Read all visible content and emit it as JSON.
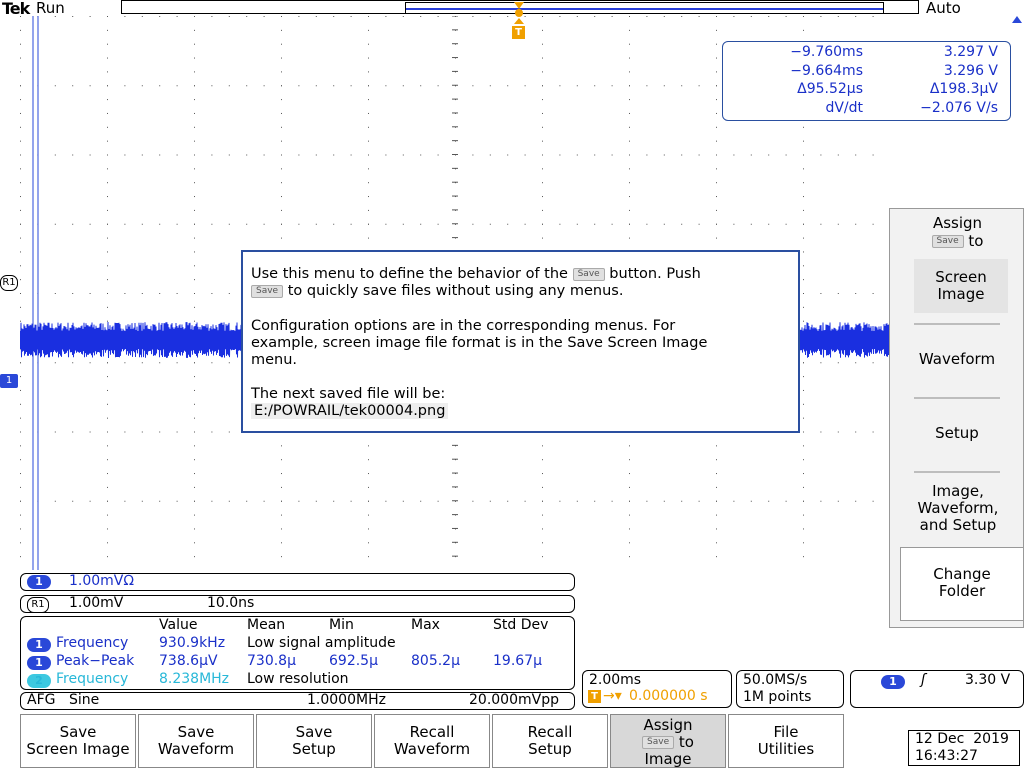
{
  "top_bar": {
    "brand": "Tek",
    "state": "Run",
    "trigger_mode": "Auto"
  },
  "trigger_marker": "T",
  "cursor_readout": {
    "rows": [
      {
        "time": "−9.760ms",
        "value": "3.297 V"
      },
      {
        "time": "−9.664ms",
        "value": "3.296 V"
      },
      {
        "time": "Δ95.52µs",
        "value": "Δ198.3µV"
      },
      {
        "time": "dV/dt",
        "value": "−2.076 V/s"
      }
    ]
  },
  "side_menu": {
    "title_top": "Assign",
    "title_chip": "Save",
    "title_suffix": "to",
    "items": [
      "Screen Image",
      "Waveform",
      "Setup",
      "Image, Waveform, and Setup",
      "Change Folder"
    ]
  },
  "dialog": {
    "p1_a": "Use this menu to define the behavior of the",
    "p1_chip": "Save",
    "p1_b": "button. Push",
    "p1_chip2": "Save",
    "p1_c": "to quickly save files without using any menus.",
    "p2_l1": "Configuration options are in the corresponding menus. For",
    "p2_l2": "example, screen image file format is in the Save Screen Image",
    "p2_l3": "menu.",
    "p3_l1": "The next saved file will be:",
    "p3_path": "E:/POWRAIL/tek00004.png"
  },
  "channel_markers": {
    "ref": "R1",
    "ch1": "1"
  },
  "ch1_bar": {
    "badge": "1",
    "scale": "1.00mVΩ"
  },
  "ref1_bar": {
    "badge": "R1",
    "scale": "1.00mV",
    "timebase": "10.0ns"
  },
  "measurements": {
    "headers": [
      "Value",
      "Mean",
      "Min",
      "Max",
      "Std Dev"
    ],
    "rows": [
      {
        "badge": "1",
        "name": "Frequency",
        "value": "930.9kHz",
        "note": "Low signal amplitude",
        "mean": "",
        "min": "",
        "max": "",
        "std": ""
      },
      {
        "badge": "1",
        "name": "Peak−Peak",
        "value": "738.6µV",
        "note": "",
        "mean": "730.8µ",
        "min": "692.5µ",
        "max": "805.2µ",
        "std": "19.67µ"
      },
      {
        "badge": "2",
        "name": "Frequency",
        "value": "8.238MHz",
        "note": "Low resolution",
        "mean": "",
        "min": "",
        "max": "",
        "std": ""
      }
    ]
  },
  "afg_bar": {
    "label": "AFG",
    "wave": "Sine",
    "freq": "1.0000MHz",
    "ampl": "20.000mVpp"
  },
  "horizontal": {
    "scale": "2.00ms",
    "delay": "0.000000 s"
  },
  "acquisition": {
    "rate": "50.0MS/s",
    "points": "1M points"
  },
  "trigger": {
    "badge": "1",
    "slope": "ʃ",
    "level": "3.30 V"
  },
  "bottom_buttons": [
    {
      "label1": "Save",
      "label2": "Screen Image"
    },
    {
      "label1": "Save",
      "label2": "Waveform"
    },
    {
      "label1": "Save",
      "label2": "Setup"
    },
    {
      "label1": "Recall",
      "label2": "Waveform"
    },
    {
      "label1": "Recall",
      "label2": "Setup"
    },
    {
      "label1": "Assign",
      "chip": "Save",
      "suffix": "to",
      "label2": "Image"
    },
    {
      "label1": "File",
      "label2": "Utilities"
    }
  ],
  "datetime": {
    "date": "12 Dec  2019",
    "time": "16:43:27"
  },
  "colors": {
    "ch1": "#1a2fe0",
    "ch2": "#3cc8e0",
    "accent": "#2a4fa0",
    "trigger": "#f0a000"
  }
}
